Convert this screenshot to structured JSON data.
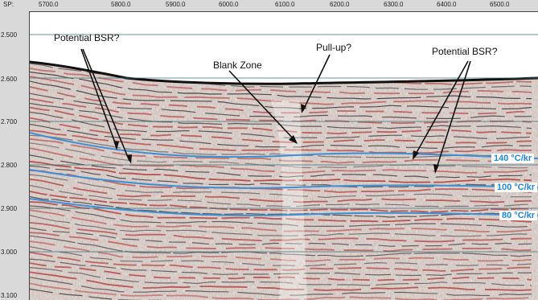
{
  "shotpoint_axis": {
    "prefix": "SP:",
    "ticks": [
      "5700.0",
      "5800.0",
      "5900.0",
      "6000.0",
      "6100.0",
      "6200.0",
      "6300.0",
      "6400.0",
      "6500.0"
    ]
  },
  "time_axis": {
    "ticks": [
      "2.500",
      "2.600",
      "2.700",
      "2.800",
      "2.900",
      "3.000",
      "3.100"
    ]
  },
  "annotations": {
    "bsr_left": "Potential BSR?",
    "bsr_right": "Potential BSR?",
    "blank_zone": "Blank Zone",
    "pull_up": "Pull-up?"
  },
  "isotherms": [
    {
      "label": "140 °C/kr",
      "color": "#1e88d9"
    },
    {
      "label": "100 °C/kr",
      "color": "#1e88d9"
    },
    {
      "label": "80 °C/kr",
      "color": "#1e88d9"
    }
  ],
  "colors": {
    "reflector_positive": "#b8322a",
    "reflector_negative": "#2a2a2a",
    "isotherm": "#3d8fd6",
    "background_noise": "#e8e3dc"
  }
}
